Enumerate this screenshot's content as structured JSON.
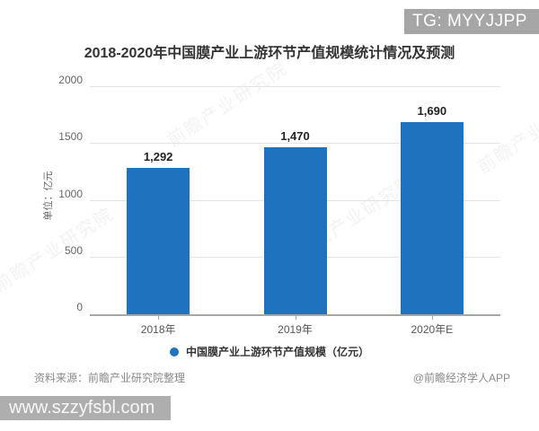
{
  "watermarks": {
    "tg_badge": "TG: MYYJJPP",
    "url_badge": "www.szzyfsbl.com",
    "diagonal_text": "前瞻产业研究院"
  },
  "chart_data": {
    "type": "bar",
    "title": "2018-2020年中国膜产业上游环节产值规模统计情况及预测",
    "categories": [
      "2018年",
      "2019年",
      "2020年E"
    ],
    "values": [
      1292,
      1470,
      1690
    ],
    "value_labels": [
      "1,292",
      "1,470",
      "1,690"
    ],
    "xlabel": "",
    "ylabel": "单位：亿元",
    "ylim": [
      0,
      2000
    ],
    "yticks": [
      0,
      500,
      1000,
      1500,
      2000
    ],
    "grid": true,
    "legend": "中国膜产业上游环节产值规模（亿元）",
    "legend_position": "bottom",
    "bar_color": "#1F72BE"
  },
  "footer": {
    "source": "资料来源：前瞻产业研究院整理",
    "credit": "@前瞻经济学人APP"
  },
  "colors": {
    "bar": "#1F72BE",
    "badge_bg": "#A6A6A6",
    "grid": "#E4E4E4",
    "axis": "#A6A6A6",
    "title_text": "#333333",
    "tick_text": "#666666",
    "footer_text": "#888888"
  }
}
